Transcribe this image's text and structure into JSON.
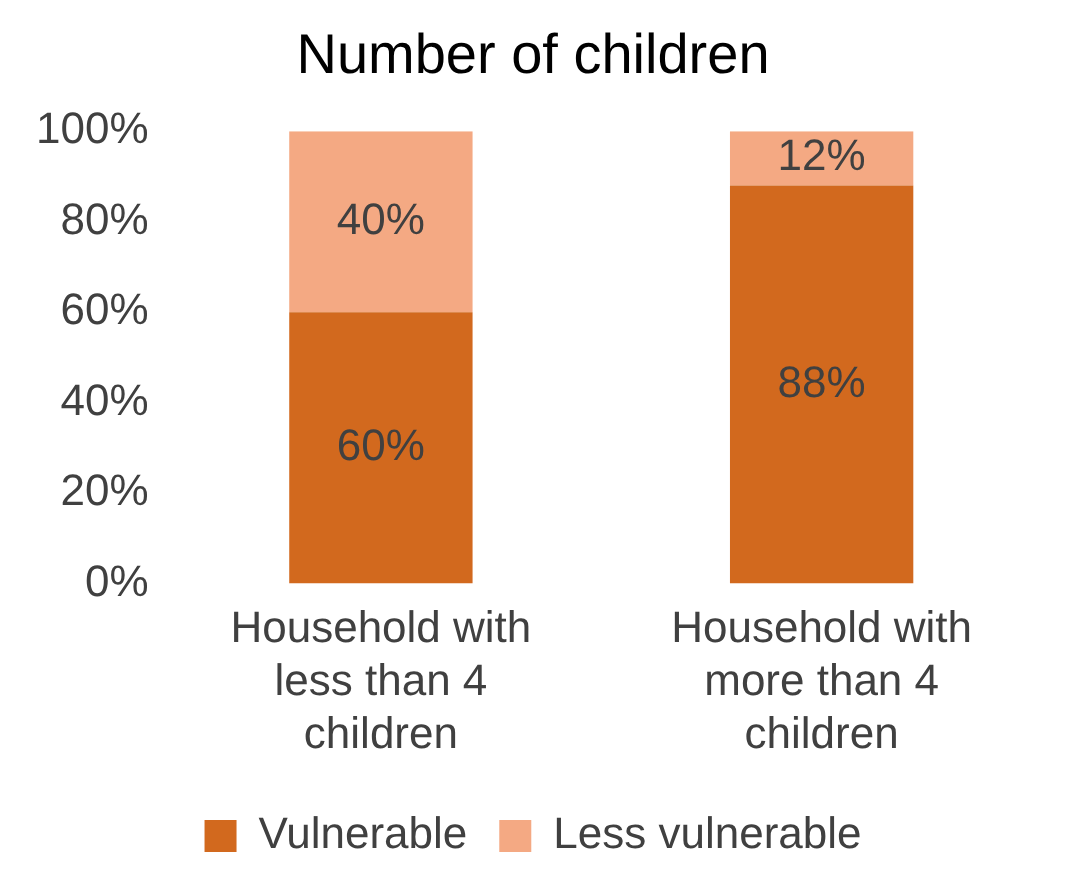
{
  "chart_data": {
    "type": "bar",
    "title": "Number of children",
    "stacked": true,
    "categories": [
      "Household with less than 4 children",
      "Household with more than 4 children"
    ],
    "series": [
      {
        "name": "Vulnerable",
        "color": "#d2691e",
        "values": [
          60,
          88
        ],
        "value_labels": [
          "60%",
          "88%"
        ]
      },
      {
        "name": "Less vulnerable",
        "color": "#f4a983",
        "values": [
          40,
          12
        ],
        "value_labels": [
          "40%",
          "12%"
        ]
      }
    ],
    "ylim": [
      0,
      100
    ],
    "yticks": [
      {
        "value": 0,
        "label": "0%"
      },
      {
        "value": 20,
        "label": "20%"
      },
      {
        "value": 40,
        "label": "40%"
      },
      {
        "value": 60,
        "label": "60%"
      },
      {
        "value": 80,
        "label": "80%"
      },
      {
        "value": 100,
        "label": "100%"
      }
    ],
    "grid": false,
    "legend": "bottom"
  }
}
